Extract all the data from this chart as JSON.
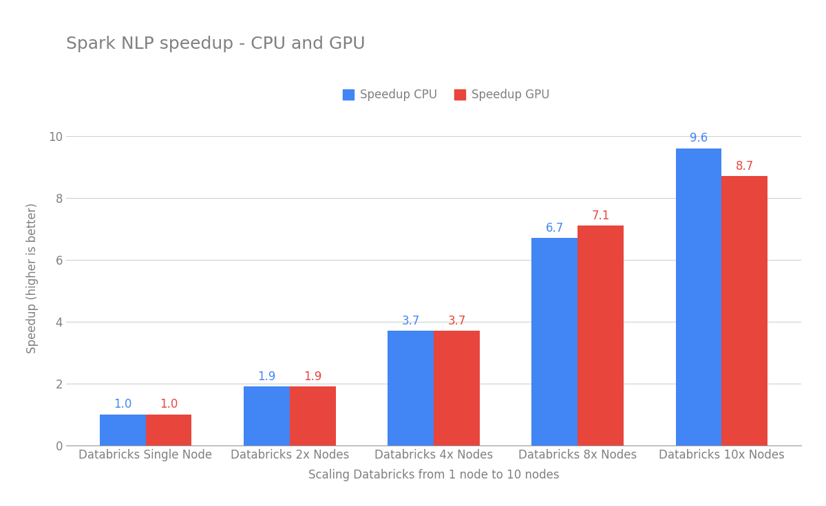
{
  "title": "Spark NLP speedup - CPU and GPU",
  "xlabel": "Scaling Databricks from 1 node to 10 nodes",
  "ylabel": "Speedup (higher is better)",
  "categories": [
    "Databricks Single Node",
    "Databricks 2x Nodes",
    "Databricks 4x Nodes",
    "Databricks 8x Nodes",
    "Databricks 10x Nodes"
  ],
  "cpu_values": [
    1.0,
    1.9,
    3.7,
    6.7,
    9.6
  ],
  "gpu_values": [
    1.0,
    1.9,
    3.7,
    7.1,
    8.7
  ],
  "cpu_color": "#4285F4",
  "gpu_color": "#E8453C",
  "cpu_label": "Speedup CPU",
  "gpu_label": "Speedup GPU",
  "ylim": [
    0,
    10.8
  ],
  "yticks": [
    0,
    2,
    4,
    6,
    8,
    10
  ],
  "background_color": "#ffffff",
  "grid_color": "#d0d0d0",
  "title_fontsize": 18,
  "label_fontsize": 12,
  "tick_fontsize": 12,
  "annotation_fontsize": 12,
  "bar_width": 0.32,
  "title_color": "#808080",
  "axis_label_color": "#808080",
  "tick_color": "#808080"
}
